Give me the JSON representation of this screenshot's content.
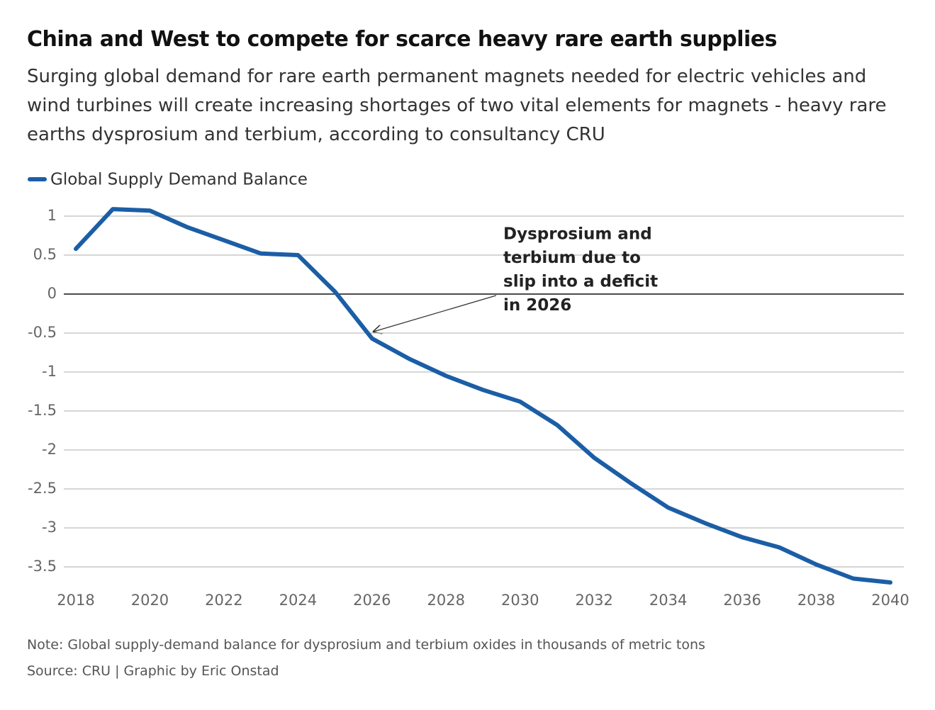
{
  "chart_data": {
    "type": "line",
    "title": "China and West to compete for scarce heavy rare earth supplies",
    "subtitle": "Surging global demand for rare earth permanent magnets needed for electric vehicles and wind turbines will create increasing shortages of two vital elements for magnets - heavy rare earths dysprosium and terbium, according to consultancy CRU",
    "x": [
      2018,
      2019,
      2020,
      2021,
      2022,
      2023,
      2024,
      2025,
      2026,
      2027,
      2028,
      2029,
      2030,
      2031,
      2032,
      2033,
      2034,
      2035,
      2036,
      2037,
      2038,
      2039,
      2040
    ],
    "series": [
      {
        "name": "Global Supply Demand Balance",
        "color": "#1b5ea6",
        "values": [
          0.58,
          1.09,
          1.07,
          0.86,
          0.69,
          0.52,
          0.5,
          0.03,
          -0.57,
          -0.83,
          -1.05,
          -1.23,
          -1.38,
          -1.68,
          -2.1,
          -2.43,
          -2.74,
          -2.94,
          -3.12,
          -3.25,
          -3.47,
          -3.65,
          -3.7
        ]
      }
    ],
    "xlim": [
      2018,
      2040
    ],
    "xticks": [
      2018,
      2020,
      2022,
      2024,
      2026,
      2028,
      2030,
      2032,
      2034,
      2036,
      2038,
      2040
    ],
    "ylim": [
      -3.75,
      1.15
    ],
    "yticks": [
      1,
      0.5,
      0,
      -0.5,
      -1,
      -1.5,
      -2,
      -2.5,
      -3,
      -3.5
    ],
    "grid": true,
    "annotation": [
      "Dysprosium and",
      "terbium due to",
      "slip into a deficit",
      "in 2026"
    ],
    "note": "Note: Global supply-demand balance for dysprosium and terbium oxides in thousands of metric tons",
    "source": "Source: CRU | Graphic by Eric Onstad"
  }
}
